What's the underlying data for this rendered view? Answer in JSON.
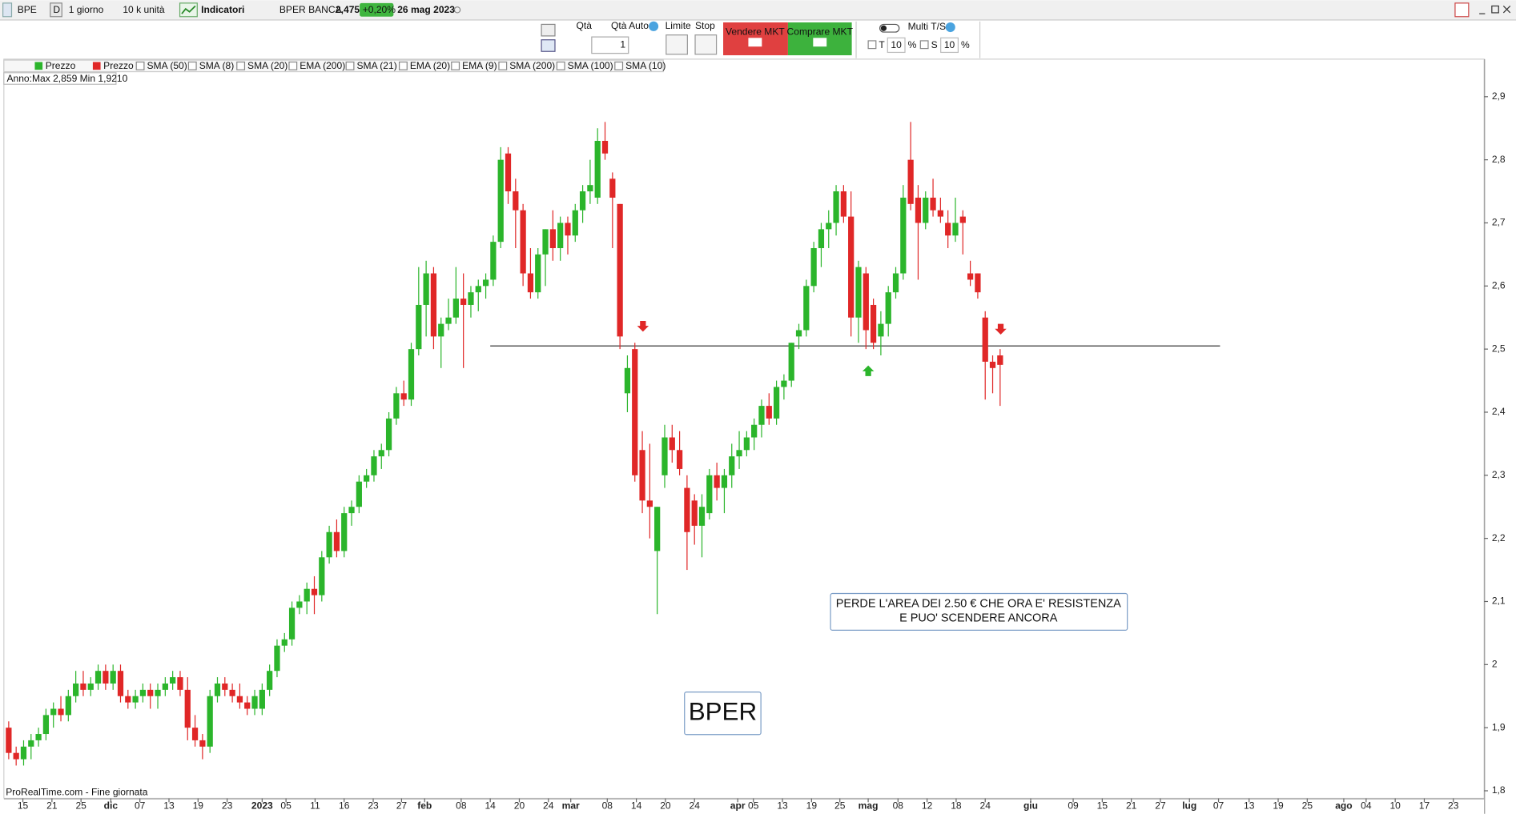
{
  "toolbar": {
    "symbol": "BPE",
    "period_code": "D",
    "period": "1 giorno",
    "units": "10 k unità",
    "indicators_button": "Indicatori",
    "instrument": "BPER BANCA",
    "last": "2,475",
    "change": "+0,20%",
    "date": "26 mag 2023"
  },
  "order_panel": {
    "qty_label": "Qtà",
    "qty_auto": "Qtà Auto",
    "qty": "1",
    "limit": "Limite",
    "stop": "Stop",
    "sell": "Vendere MKT",
    "buy": "Comprare MKT",
    "multi": "Multi T/S",
    "t_label": "T",
    "t_value": "10",
    "t_unit": "%",
    "s_label": "S",
    "s_value": "10",
    "s_unit": "%"
  },
  "chart_data": {
    "type": "candlestick",
    "legend": [
      "Prezzo",
      "Prezzo",
      "SMA (50)",
      "SMA (8)",
      "SMA (20)",
      "EMA (200)",
      "SMA (21)",
      "EMA (20)",
      "EMA (9)",
      "SMA (200)",
      "SMA (100)",
      "SMA (10)"
    ],
    "info": "Anno:Max 2,859 Min 1,9210",
    "footer": "ProRealTime.com - Fine giornata",
    "annotation": [
      "PERDE L'AREA DEI 2.50 € CHE ORA E' RESISTENZA",
      "E PUO' SCENDERE ANCORA"
    ],
    "label_box": "BPER",
    "up_color": "#2bb52b",
    "down_color": "#e02727",
    "level": {
      "value": 2.505,
      "from": 64.6,
      "to": 162.5
    },
    "ylim": [
      1.788,
      2.958
    ],
    "yticks": [
      {
        "value": 1.8,
        "label": "1,8"
      },
      {
        "value": 1.9,
        "label": "1,9"
      },
      2,
      {
        "value": 2.1,
        "label": "2,1"
      },
      {
        "value": 2.2,
        "label": "2,2"
      },
      {
        "value": 2.3,
        "label": "2,3"
      },
      {
        "value": 2.4,
        "label": "2,4"
      },
      {
        "value": 2.5,
        "label": "2,5"
      },
      {
        "value": 2.6,
        "label": "2,6"
      },
      {
        "value": 2.7,
        "label": "2,7"
      },
      {
        "value": 2.8,
        "label": "2,8"
      },
      {
        "value": 2.9,
        "label": "2,9"
      }
    ],
    "xlim": [
      -0.6,
      198
    ],
    "xticks": [
      {
        "value": 1.9,
        "label": "15"
      },
      {
        "value": 5.8,
        "label": "21"
      },
      {
        "value": 9.7,
        "label": "25"
      },
      {
        "value": 13.7,
        "label": "dic"
      },
      {
        "value": 17.6,
        "label": "07"
      },
      {
        "value": 21.5,
        "label": "13"
      },
      {
        "value": 25.4,
        "label": "19"
      },
      {
        "value": 29.3,
        "label": "23"
      },
      {
        "value": 34.0,
        "label": "2023"
      },
      {
        "value": 37.2,
        "label": "05"
      },
      {
        "value": 41.1,
        "label": "11"
      },
      {
        "value": 45.0,
        "label": "16"
      },
      {
        "value": 48.9,
        "label": "23"
      },
      {
        "value": 52.7,
        "label": "27"
      },
      {
        "value": 55.8,
        "label": "feb"
      },
      {
        "value": 60.7,
        "label": "08"
      },
      {
        "value": 64.6,
        "label": "14"
      },
      {
        "value": 68.5,
        "label": "20"
      },
      {
        "value": 72.4,
        "label": "24"
      },
      {
        "value": 75.4,
        "label": "mar"
      },
      {
        "value": 80.3,
        "label": "08"
      },
      {
        "value": 84.2,
        "label": "14"
      },
      {
        "value": 88.1,
        "label": "20"
      },
      {
        "value": 92.0,
        "label": "24"
      },
      {
        "value": 97.8,
        "label": "apr"
      },
      {
        "value": 99.9,
        "label": "05"
      },
      {
        "value": 103.8,
        "label": "13"
      },
      {
        "value": 107.7,
        "label": "19"
      },
      {
        "value": 111.5,
        "label": "25"
      },
      {
        "value": 115.3,
        "label": "mag"
      },
      {
        "value": 119.3,
        "label": "08"
      },
      {
        "value": 123.2,
        "label": "12"
      },
      {
        "value": 127.1,
        "label": "18"
      },
      {
        "value": 131.0,
        "label": "24"
      },
      {
        "value": 137.1,
        "label": "giu"
      },
      {
        "value": 142.8,
        "label": "09"
      },
      {
        "value": 146.7,
        "label": "15"
      },
      {
        "value": 150.6,
        "label": "21"
      },
      {
        "value": 154.5,
        "label": "27"
      },
      {
        "value": 158.4,
        "label": "lug"
      },
      {
        "value": 162.3,
        "label": "07"
      },
      {
        "value": 166.4,
        "label": "13"
      },
      {
        "value": 170.3,
        "label": "19"
      },
      {
        "value": 174.2,
        "label": "25"
      },
      {
        "value": 179.1,
        "label": "ago"
      },
      {
        "value": 182.1,
        "label": "04"
      },
      {
        "value": 186.0,
        "label": "10"
      },
      {
        "value": 189.9,
        "label": "17"
      },
      {
        "value": 193.8,
        "label": "23"
      }
    ],
    "ohlc": [
      [
        1.9,
        1.91,
        1.85,
        1.86
      ],
      [
        1.86,
        1.87,
        1.84,
        1.85
      ],
      [
        1.85,
        1.88,
        1.84,
        1.87
      ],
      [
        1.87,
        1.89,
        1.85,
        1.88
      ],
      [
        1.88,
        1.9,
        1.87,
        1.89
      ],
      [
        1.89,
        1.93,
        1.88,
        1.92
      ],
      [
        1.92,
        1.94,
        1.9,
        1.93
      ],
      [
        1.93,
        1.95,
        1.91,
        1.92
      ],
      [
        1.92,
        1.96,
        1.91,
        1.95
      ],
      [
        1.95,
        1.99,
        1.94,
        1.97
      ],
      [
        1.97,
        1.99,
        1.95,
        1.96
      ],
      [
        1.96,
        1.98,
        1.95,
        1.97
      ],
      [
        1.97,
        2.0,
        1.96,
        1.99
      ],
      [
        1.99,
        2.0,
        1.96,
        1.97
      ],
      [
        1.97,
        2.0,
        1.96,
        1.99
      ],
      [
        1.99,
        2.0,
        1.94,
        1.95
      ],
      [
        1.95,
        1.96,
        1.93,
        1.94
      ],
      [
        1.94,
        1.96,
        1.93,
        1.95
      ],
      [
        1.95,
        1.97,
        1.94,
        1.96
      ],
      [
        1.96,
        1.97,
        1.93,
        1.95
      ],
      [
        1.95,
        1.97,
        1.93,
        1.96
      ],
      [
        1.96,
        1.98,
        1.95,
        1.97
      ],
      [
        1.97,
        1.99,
        1.96,
        1.98
      ],
      [
        1.98,
        1.99,
        1.95,
        1.96
      ],
      [
        1.96,
        1.98,
        1.88,
        1.9
      ],
      [
        1.9,
        1.92,
        1.87,
        1.88
      ],
      [
        1.88,
        1.89,
        1.85,
        1.87
      ],
      [
        1.87,
        1.96,
        1.86,
        1.95
      ],
      [
        1.95,
        1.98,
        1.94,
        1.97
      ],
      [
        1.97,
        1.98,
        1.95,
        1.96
      ],
      [
        1.96,
        1.97,
        1.94,
        1.95
      ],
      [
        1.95,
        1.97,
        1.93,
        1.94
      ],
      [
        1.94,
        1.95,
        1.92,
        1.93
      ],
      [
        1.93,
        1.96,
        1.92,
        1.95
      ],
      [
        1.93,
        1.97,
        1.92,
        1.96
      ],
      [
        1.96,
        2.0,
        1.95,
        1.99
      ],
      [
        1.99,
        2.04,
        1.98,
        2.03
      ],
      [
        2.03,
        2.05,
        2.02,
        2.04
      ],
      [
        2.04,
        2.1,
        2.03,
        2.09
      ],
      [
        2.09,
        2.11,
        2.08,
        2.1
      ],
      [
        2.1,
        2.13,
        2.08,
        2.12
      ],
      [
        2.12,
        2.14,
        2.08,
        2.11
      ],
      [
        2.11,
        2.18,
        2.1,
        2.17
      ],
      [
        2.17,
        2.22,
        2.16,
        2.21
      ],
      [
        2.21,
        2.23,
        2.17,
        2.18
      ],
      [
        2.18,
        2.25,
        2.17,
        2.24
      ],
      [
        2.24,
        2.26,
        2.22,
        2.25
      ],
      [
        2.25,
        2.3,
        2.24,
        2.29
      ],
      [
        2.29,
        2.31,
        2.28,
        2.3
      ],
      [
        2.3,
        2.34,
        2.29,
        2.33
      ],
      [
        2.33,
        2.35,
        2.31,
        2.34
      ],
      [
        2.34,
        2.4,
        2.33,
        2.39
      ],
      [
        2.39,
        2.44,
        2.38,
        2.43
      ],
      [
        2.43,
        2.45,
        2.41,
        2.42
      ],
      [
        2.42,
        2.51,
        2.41,
        2.5
      ],
      [
        2.5,
        2.63,
        2.49,
        2.57
      ],
      [
        2.57,
        2.64,
        2.52,
        2.62
      ],
      [
        2.62,
        2.63,
        2.5,
        2.52
      ],
      [
        2.52,
        2.55,
        2.47,
        2.54
      ],
      [
        2.54,
        2.58,
        2.53,
        2.55
      ],
      [
        2.55,
        2.63,
        2.54,
        2.58
      ],
      [
        2.58,
        2.62,
        2.47,
        2.57
      ],
      [
        2.57,
        2.6,
        2.55,
        2.59
      ],
      [
        2.59,
        2.61,
        2.56,
        2.6
      ],
      [
        2.6,
        2.62,
        2.58,
        2.61
      ],
      [
        2.61,
        2.68,
        2.6,
        2.67
      ],
      [
        2.67,
        2.82,
        2.66,
        2.8
      ],
      [
        2.81,
        2.82,
        2.73,
        2.75
      ],
      [
        2.75,
        2.77,
        2.66,
        2.72
      ],
      [
        2.72,
        2.73,
        2.6,
        2.62
      ],
      [
        2.62,
        2.66,
        2.58,
        2.59
      ],
      [
        2.59,
        2.66,
        2.58,
        2.65
      ],
      [
        2.65,
        2.69,
        2.6,
        2.69
      ],
      [
        2.69,
        2.72,
        2.64,
        2.66
      ],
      [
        2.66,
        2.71,
        2.64,
        2.7
      ],
      [
        2.7,
        2.71,
        2.65,
        2.68
      ],
      [
        2.68,
        2.73,
        2.67,
        2.72
      ],
      [
        2.72,
        2.76,
        2.7,
        2.75
      ],
      [
        2.75,
        2.8,
        2.73,
        2.76
      ],
      [
        2.74,
        2.85,
        2.73,
        2.83
      ],
      [
        2.83,
        2.86,
        2.8,
        2.81
      ],
      [
        2.77,
        2.78,
        2.66,
        2.74
      ],
      [
        2.73,
        2.73,
        2.5,
        2.52
      ],
      [
        2.43,
        2.49,
        2.4,
        2.47
      ],
      [
        2.5,
        2.51,
        2.29,
        2.3
      ],
      [
        2.34,
        2.37,
        2.24,
        2.26
      ],
      [
        2.26,
        2.35,
        2.2,
        2.25
      ],
      [
        2.18,
        2.25,
        2.08,
        2.25
      ],
      [
        2.3,
        2.38,
        2.28,
        2.36
      ],
      [
        2.36,
        2.38,
        2.32,
        2.34
      ],
      [
        2.34,
        2.37,
        2.3,
        2.31
      ],
      [
        2.28,
        2.3,
        2.15,
        2.21
      ],
      [
        2.26,
        2.27,
        2.19,
        2.22
      ],
      [
        2.22,
        2.27,
        2.17,
        2.25
      ],
      [
        2.24,
        2.31,
        2.23,
        2.3
      ],
      [
        2.3,
        2.32,
        2.26,
        2.28
      ],
      [
        2.28,
        2.31,
        2.24,
        2.3
      ],
      [
        2.3,
        2.35,
        2.28,
        2.33
      ],
      [
        2.33,
        2.37,
        2.31,
        2.34
      ],
      [
        2.34,
        2.37,
        2.33,
        2.36
      ],
      [
        2.36,
        2.39,
        2.34,
        2.38
      ],
      [
        2.38,
        2.42,
        2.36,
        2.41
      ],
      [
        2.41,
        2.43,
        2.38,
        2.39
      ],
      [
        2.39,
        2.45,
        2.38,
        2.44
      ],
      [
        2.44,
        2.46,
        2.42,
        2.45
      ],
      [
        2.45,
        2.51,
        2.44,
        2.51
      ],
      [
        2.52,
        2.54,
        2.5,
        2.53
      ],
      [
        2.53,
        2.61,
        2.52,
        2.6
      ],
      [
        2.6,
        2.67,
        2.59,
        2.66
      ],
      [
        2.66,
        2.7,
        2.63,
        2.69
      ],
      [
        2.69,
        2.72,
        2.66,
        2.7
      ],
      [
        2.7,
        2.76,
        2.68,
        2.75
      ],
      [
        2.75,
        2.76,
        2.7,
        2.71
      ],
      [
        2.71,
        2.75,
        2.52,
        2.55
      ],
      [
        2.55,
        2.64,
        2.51,
        2.63
      ],
      [
        2.62,
        2.63,
        2.5,
        2.53
      ],
      [
        2.57,
        2.58,
        2.5,
        2.51
      ],
      [
        2.52,
        2.56,
        2.49,
        2.54
      ],
      [
        2.54,
        2.6,
        2.52,
        2.59
      ],
      [
        2.59,
        2.63,
        2.58,
        2.62
      ],
      [
        2.62,
        2.76,
        2.61,
        2.74
      ],
      [
        2.8,
        2.86,
        2.72,
        2.73
      ],
      [
        2.74,
        2.76,
        2.61,
        2.7
      ],
      [
        2.7,
        2.75,
        2.69,
        2.74
      ],
      [
        2.74,
        2.77,
        2.71,
        2.72
      ],
      [
        2.72,
        2.74,
        2.7,
        2.71
      ],
      [
        2.7,
        2.72,
        2.66,
        2.68
      ],
      [
        2.68,
        2.74,
        2.67,
        2.7
      ],
      [
        2.71,
        2.72,
        2.65,
        2.7
      ],
      [
        2.62,
        2.64,
        2.6,
        2.61
      ],
      [
        2.62,
        2.62,
        2.58,
        2.59
      ],
      [
        2.55,
        2.56,
        2.42,
        2.48
      ],
      [
        2.48,
        2.49,
        2.43,
        2.47
      ],
      [
        2.49,
        2.5,
        2.41,
        2.475
      ]
    ]
  }
}
